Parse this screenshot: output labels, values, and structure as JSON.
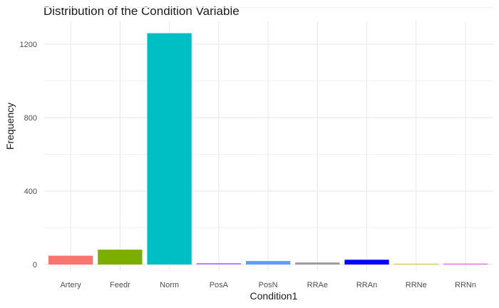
{
  "chart_data": {
    "type": "bar",
    "title": "Distribution of the Condition Variable",
    "xlabel": "Condition1",
    "ylabel": "Frequency",
    "categories": [
      "Artery",
      "Feedr",
      "Norm",
      "PosA",
      "PosN",
      "RRAe",
      "RRAn",
      "RRNe",
      "RRNn"
    ],
    "values": [
      48,
      81,
      1260,
      8,
      19,
      11,
      26,
      2,
      5
    ],
    "colors": [
      "#F8766D",
      "#7CAE00",
      "#00BFC4",
      "#C77CFF",
      "#619CFF",
      "#999999",
      "#0000FF",
      "#D4C94A",
      "#E76BF3"
    ],
    "yticks": [
      0,
      400,
      800,
      1200
    ],
    "ylim": [
      0,
      1260
    ],
    "grid": true,
    "legend": "none"
  }
}
